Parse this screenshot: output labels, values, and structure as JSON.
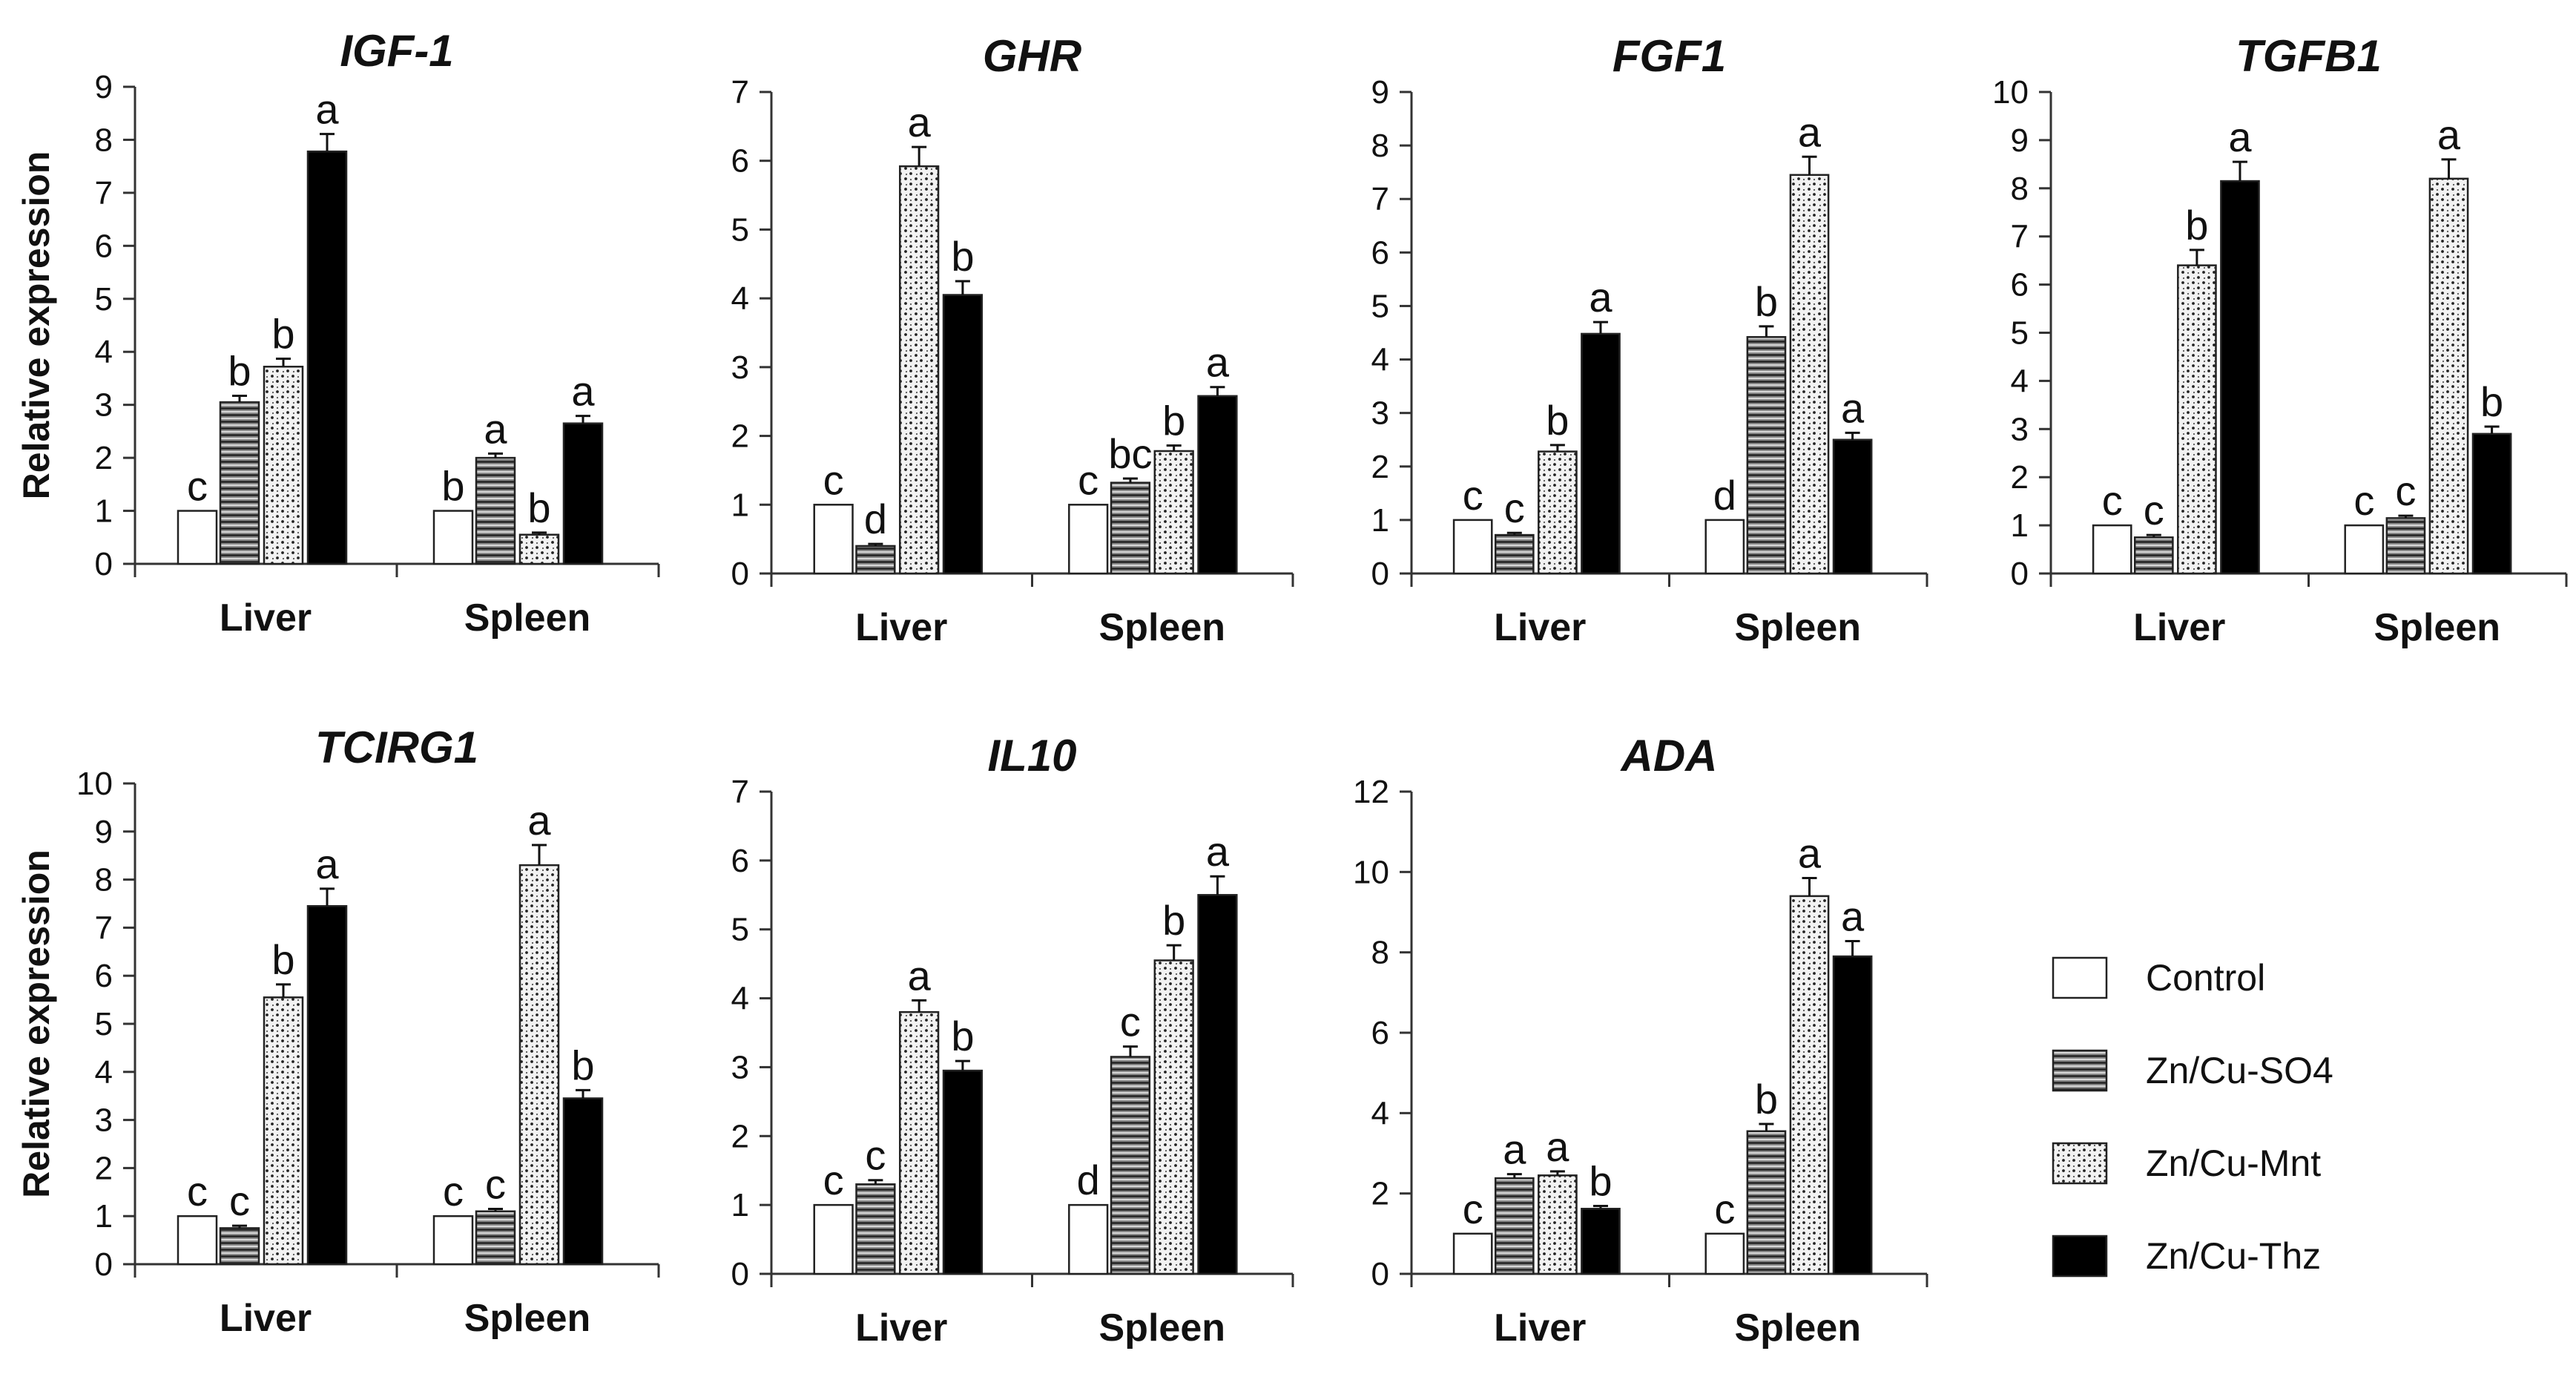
{
  "figure": {
    "ylabel": "Relative expression",
    "legend": [
      {
        "name": "Control",
        "pattern": "white"
      },
      {
        "name": "Zn/Cu-SO4",
        "pattern": "hstripes"
      },
      {
        "name": "Zn/Cu-Mnt",
        "pattern": "dots"
      },
      {
        "name": "Zn/Cu-Thz",
        "pattern": "black"
      }
    ]
  },
  "chart_data": [
    {
      "type": "bar",
      "title": "IGF-1",
      "ylabel": "Relative expression",
      "ylim": [
        0,
        9
      ],
      "ticks": [
        0,
        1,
        2,
        3,
        4,
        5,
        6,
        7,
        8,
        9
      ],
      "categories": [
        "Liver",
        "Spleen"
      ],
      "series": [
        {
          "name": "Control",
          "values": [
            1.0,
            1.0
          ],
          "errors": [
            0,
            0
          ],
          "letters": [
            "c",
            "b"
          ]
        },
        {
          "name": "Zn/Cu-SO4",
          "values": [
            3.05,
            2.0
          ],
          "errors": [
            0.12,
            0.08
          ],
          "letters": [
            "b",
            "a"
          ]
        },
        {
          "name": "Zn/Cu-Mnt",
          "values": [
            3.72,
            0.55
          ],
          "errors": [
            0.15,
            0.04
          ],
          "letters": [
            "b",
            "b"
          ]
        },
        {
          "name": "Zn/Cu-Thz",
          "values": [
            7.78,
            2.65
          ],
          "errors": [
            0.33,
            0.14
          ],
          "letters": [
            "a",
            "a"
          ]
        }
      ]
    },
    {
      "type": "bar",
      "title": "GHR",
      "ylabel": "",
      "ylim": [
        0,
        7
      ],
      "ticks": [
        0,
        1,
        2,
        3,
        4,
        5,
        6,
        7
      ],
      "categories": [
        "Liver",
        "Spleen"
      ],
      "series": [
        {
          "name": "Control",
          "values": [
            1.0,
            1.0
          ],
          "errors": [
            0,
            0
          ],
          "letters": [
            "c",
            "c"
          ]
        },
        {
          "name": "Zn/Cu-SO4",
          "values": [
            0.4,
            1.32
          ],
          "errors": [
            0.03,
            0.06
          ],
          "letters": [
            "d",
            "bc"
          ]
        },
        {
          "name": "Zn/Cu-Mnt",
          "values": [
            5.92,
            1.78
          ],
          "errors": [
            0.28,
            0.08
          ],
          "letters": [
            "a",
            "b"
          ]
        },
        {
          "name": "Zn/Cu-Thz",
          "values": [
            4.05,
            2.58
          ],
          "errors": [
            0.2,
            0.13
          ],
          "letters": [
            "b",
            "a"
          ]
        }
      ]
    },
    {
      "type": "bar",
      "title": "FGF1",
      "ylabel": "",
      "ylim": [
        0,
        9
      ],
      "ticks": [
        0,
        1,
        2,
        3,
        4,
        5,
        6,
        7,
        8,
        9
      ],
      "categories": [
        "Liver",
        "Spleen"
      ],
      "series": [
        {
          "name": "Control",
          "values": [
            1.0,
            1.0
          ],
          "errors": [
            0,
            0
          ],
          "letters": [
            "c",
            "d"
          ]
        },
        {
          "name": "Zn/Cu-SO4",
          "values": [
            0.72,
            4.42
          ],
          "errors": [
            0.04,
            0.2
          ],
          "letters": [
            "c",
            "b"
          ]
        },
        {
          "name": "Zn/Cu-Mnt",
          "values": [
            2.28,
            7.45
          ],
          "errors": [
            0.12,
            0.34
          ],
          "letters": [
            "b",
            "a"
          ]
        },
        {
          "name": "Zn/Cu-Thz",
          "values": [
            4.48,
            2.5
          ],
          "errors": [
            0.22,
            0.13
          ],
          "letters": [
            "a",
            "a"
          ]
        }
      ]
    },
    {
      "type": "bar",
      "title": "TGFB1",
      "ylabel": "",
      "ylim": [
        0,
        10
      ],
      "ticks": [
        0,
        1,
        2,
        3,
        4,
        5,
        6,
        7,
        8,
        9,
        10
      ],
      "categories": [
        "Liver",
        "Spleen"
      ],
      "series": [
        {
          "name": "Control",
          "values": [
            1.0,
            1.0
          ],
          "errors": [
            0,
            0
          ],
          "letters": [
            "c",
            "c"
          ]
        },
        {
          "name": "Zn/Cu-SO4",
          "values": [
            0.75,
            1.15
          ],
          "errors": [
            0.05,
            0.05
          ],
          "letters": [
            "c",
            "c"
          ]
        },
        {
          "name": "Zn/Cu-Mnt",
          "values": [
            6.4,
            8.2
          ],
          "errors": [
            0.32,
            0.4
          ],
          "letters": [
            "b",
            "a"
          ]
        },
        {
          "name": "Zn/Cu-Thz",
          "values": [
            8.15,
            2.9
          ],
          "errors": [
            0.4,
            0.15
          ],
          "letters": [
            "a",
            "b"
          ]
        }
      ]
    },
    {
      "type": "bar",
      "title": "TCIRG1",
      "ylabel": "Relative expression",
      "ylim": [
        0,
        10
      ],
      "ticks": [
        0,
        1,
        2,
        3,
        4,
        5,
        6,
        7,
        8,
        9,
        10
      ],
      "categories": [
        "Liver",
        "Spleen"
      ],
      "series": [
        {
          "name": "Control",
          "values": [
            1.0,
            1.0
          ],
          "errors": [
            0,
            0
          ],
          "letters": [
            "c",
            "c"
          ]
        },
        {
          "name": "Zn/Cu-SO4",
          "values": [
            0.75,
            1.1
          ],
          "errors": [
            0.05,
            0.05
          ],
          "letters": [
            "c",
            "c"
          ]
        },
        {
          "name": "Zn/Cu-Mnt",
          "values": [
            5.55,
            8.3
          ],
          "errors": [
            0.27,
            0.42
          ],
          "letters": [
            "b",
            "a"
          ]
        },
        {
          "name": "Zn/Cu-Thz",
          "values": [
            7.45,
            3.45
          ],
          "errors": [
            0.36,
            0.17
          ],
          "letters": [
            "a",
            "b"
          ]
        }
      ]
    },
    {
      "type": "bar",
      "title": "IL10",
      "ylabel": "",
      "ylim": [
        0,
        7
      ],
      "ticks": [
        0,
        1,
        2,
        3,
        4,
        5,
        6,
        7
      ],
      "categories": [
        "Liver",
        "Spleen"
      ],
      "series": [
        {
          "name": "Control",
          "values": [
            1.0,
            1.0
          ],
          "errors": [
            0,
            0
          ],
          "letters": [
            "c",
            "d"
          ]
        },
        {
          "name": "Zn/Cu-SO4",
          "values": [
            1.3,
            3.15
          ],
          "errors": [
            0.06,
            0.15
          ],
          "letters": [
            "c",
            "c"
          ]
        },
        {
          "name": "Zn/Cu-Mnt",
          "values": [
            3.8,
            4.55
          ],
          "errors": [
            0.17,
            0.22
          ],
          "letters": [
            "a",
            "b"
          ]
        },
        {
          "name": "Zn/Cu-Thz",
          "values": [
            2.95,
            5.5
          ],
          "errors": [
            0.14,
            0.27
          ],
          "letters": [
            "b",
            "a"
          ]
        }
      ]
    },
    {
      "type": "bar",
      "title": "ADA",
      "ylabel": "",
      "ylim": [
        0,
        12
      ],
      "ticks": [
        0,
        2,
        4,
        6,
        8,
        10,
        12
      ],
      "categories": [
        "Liver",
        "Spleen"
      ],
      "series": [
        {
          "name": "Control",
          "values": [
            1.0,
            1.0
          ],
          "errors": [
            0,
            0
          ],
          "letters": [
            "c",
            "c"
          ]
        },
        {
          "name": "Zn/Cu-SO4",
          "values": [
            2.38,
            3.55
          ],
          "errors": [
            0.1,
            0.18
          ],
          "letters": [
            "a",
            "b"
          ]
        },
        {
          "name": "Zn/Cu-Mnt",
          "values": [
            2.45,
            9.4
          ],
          "errors": [
            0.1,
            0.45
          ],
          "letters": [
            "a",
            "a"
          ]
        },
        {
          "name": "Zn/Cu-Thz",
          "values": [
            1.62,
            7.9
          ],
          "errors": [
            0.07,
            0.38
          ],
          "letters": [
            "b",
            "a"
          ]
        }
      ]
    }
  ]
}
